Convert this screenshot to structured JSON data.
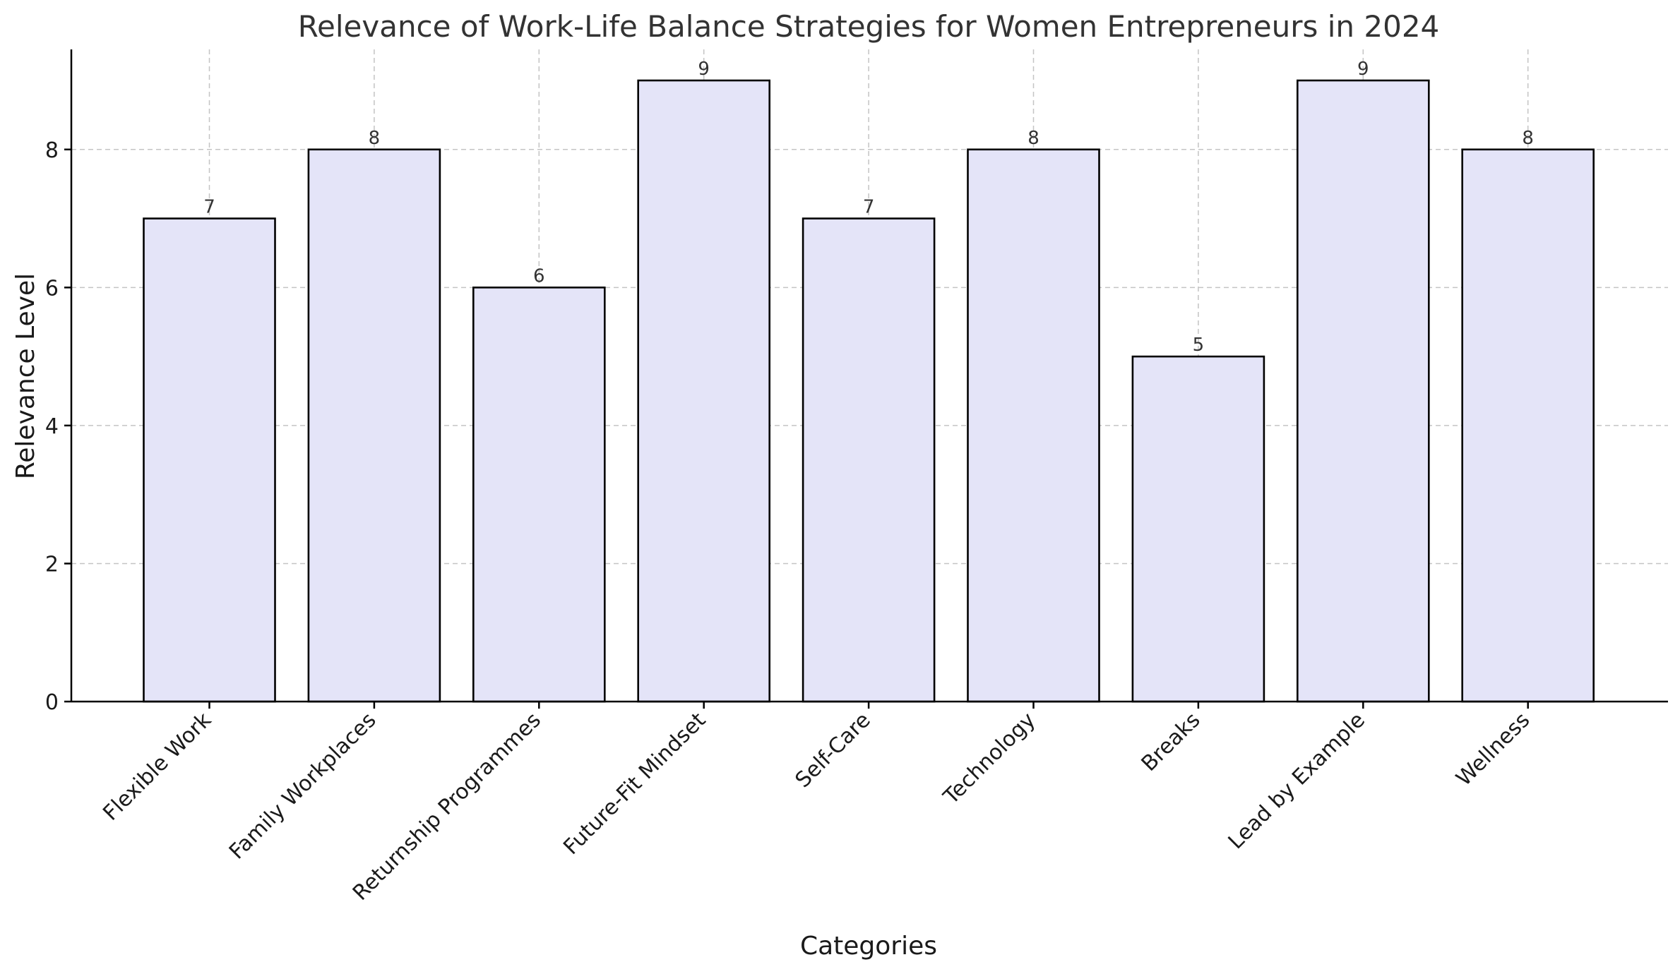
{
  "chart_data": {
    "type": "bar",
    "title": "Relevance of Work-Life Balance Strategies for Women Entrepreneurs in 2024",
    "xlabel": "Categories",
    "ylabel": "Relevance Level",
    "categories": [
      "Flexible Work",
      "Family Workplaces",
      "Returnship Programmes",
      "Future-Fit Mindset",
      "Self-Care",
      "Technology",
      "Breaks",
      "Lead by Example",
      "Wellness"
    ],
    "values": [
      7,
      8,
      6,
      9,
      7,
      8,
      5,
      9,
      8
    ],
    "ylim": [
      0,
      9.45
    ],
    "yticks": [
      0,
      2,
      4,
      6,
      8
    ],
    "grid": true,
    "data_labels": true,
    "bar_color": "#e4e4f8",
    "edge_color": "#000000"
  }
}
